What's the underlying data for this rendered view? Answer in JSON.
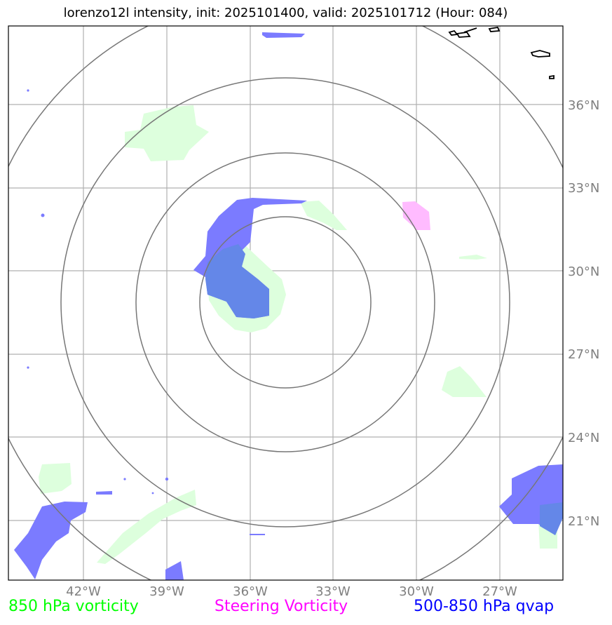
{
  "title": "lorenzo12l intensity, init: 2025101400, valid: 2025101712 (Hour: 084)",
  "latitude_labels": [
    "36°N",
    "33°N",
    "30°N",
    "27°N",
    "24°N",
    "21°N"
  ],
  "longitude_labels": [
    "42°W",
    "39°W",
    "36°W",
    "33°W",
    "30°W",
    "27°W"
  ],
  "legend": {
    "vort850": "850 hPa vorticity",
    "steering": "Steering Vorticity",
    "qvap": "500-850 hPa qvap"
  },
  "colors": {
    "vort850_text": "#00ff00",
    "steering_text": "#ff00ff",
    "qvap_text": "#0000ff",
    "vort850_fill": "#ddffdd",
    "steering_fill": "#ffbbff",
    "qvap_fill": "#7b7bff",
    "grid": "#b0b0b0",
    "rings": "#777777"
  }
}
